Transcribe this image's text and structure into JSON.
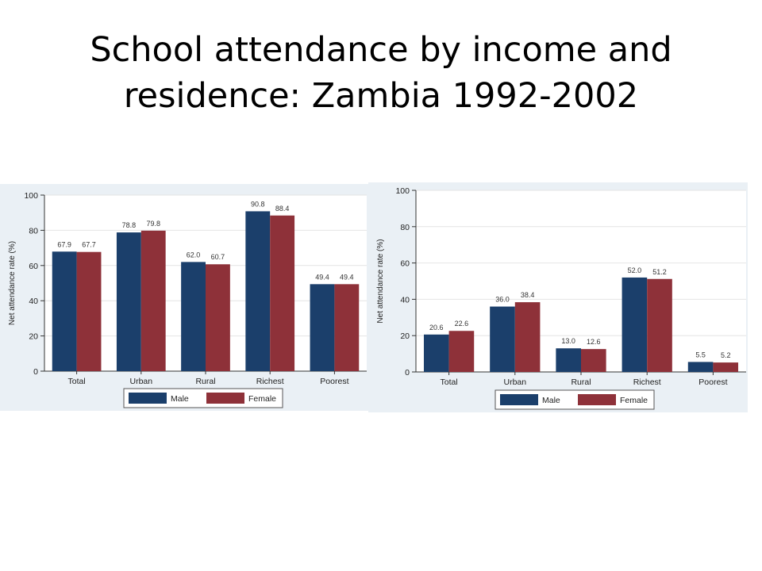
{
  "slide": {
    "title_line1": "School attendance by income and",
    "title_line2": "residence: Zambia 1992-2002"
  },
  "colors": {
    "male": "#1b3f6b",
    "female": "#8e3139",
    "plot_background": "#ffffff",
    "panel_background": "#eaf0f5",
    "gridline": "#e4e4e4",
    "text": "#222222"
  },
  "chart_data": [
    {
      "type": "bar",
      "categories": [
        "Total",
        "Urban",
        "Rural",
        "Richest",
        "Poorest"
      ],
      "series": [
        {
          "name": "Male",
          "values": [
            67.9,
            78.8,
            62.0,
            90.8,
            49.4
          ],
          "labels": [
            "67.9",
            "78.8",
            "62.0",
            "90.8",
            "49.4"
          ]
        },
        {
          "name": "Female",
          "values": [
            67.7,
            79.8,
            60.7,
            88.4,
            49.4
          ],
          "labels": [
            "67.7",
            "79.8",
            "60.7",
            "88.4",
            "49.4"
          ]
        }
      ],
      "ylabel": "Net attendance rate (%)",
      "ylim": [
        0,
        100
      ],
      "yticks": [
        "0",
        "20",
        "40",
        "60",
        "80",
        "100"
      ],
      "grid": true,
      "legend_position": "bottom-center"
    },
    {
      "type": "bar",
      "categories": [
        "Total",
        "Urban",
        "Rural",
        "Richest",
        "Poorest"
      ],
      "series": [
        {
          "name": "Male",
          "values": [
            20.6,
            36.0,
            13.0,
            52.0,
            5.5
          ],
          "labels": [
            "20.6",
            "36.0",
            "13.0",
            "52.0",
            "5.5"
          ]
        },
        {
          "name": "Female",
          "values": [
            22.6,
            38.4,
            12.6,
            51.2,
            5.2
          ],
          "labels": [
            "22.6",
            "38.4",
            "12.6",
            "51.2",
            "5.2"
          ]
        }
      ],
      "ylabel": "Net attendance rate (%)",
      "ylim": [
        0,
        100
      ],
      "yticks": [
        "0",
        "20",
        "40",
        "60",
        "80",
        "100"
      ],
      "grid": true,
      "legend_position": "bottom-center"
    }
  ]
}
